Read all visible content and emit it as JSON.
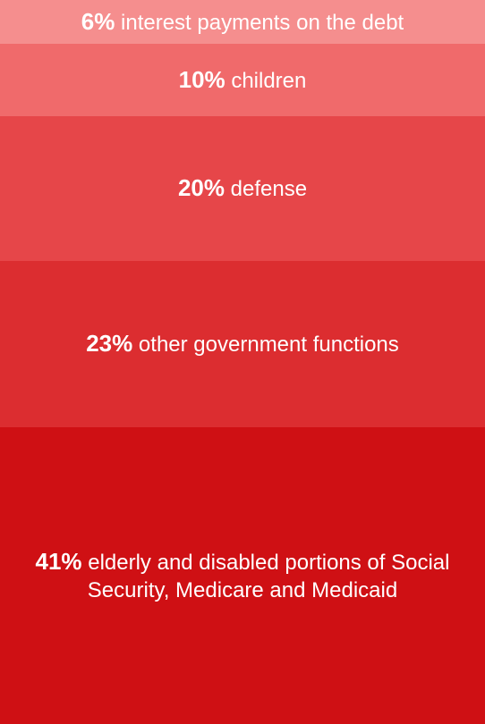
{
  "chart_data": {
    "type": "bar",
    "orientation": "stacked-vertical",
    "segments": [
      {
        "value": 6,
        "percent_label": "6%",
        "label": "interest payments on the debt",
        "color": "#f58e8e"
      },
      {
        "value": 10,
        "percent_label": "10%",
        "label": "children",
        "color": "#f06a6b"
      },
      {
        "value": 20,
        "percent_label": "20%",
        "label": "defense",
        "color": "#e64649"
      },
      {
        "value": 23,
        "percent_label": "23%",
        "label": "other government functions",
        "color": "#dc2d30"
      },
      {
        "value": 41,
        "percent_label": "41%",
        "label": "elderly and disabled portions of Social Security, Medicare and Medicaid",
        "color": "#cf1014"
      }
    ]
  }
}
